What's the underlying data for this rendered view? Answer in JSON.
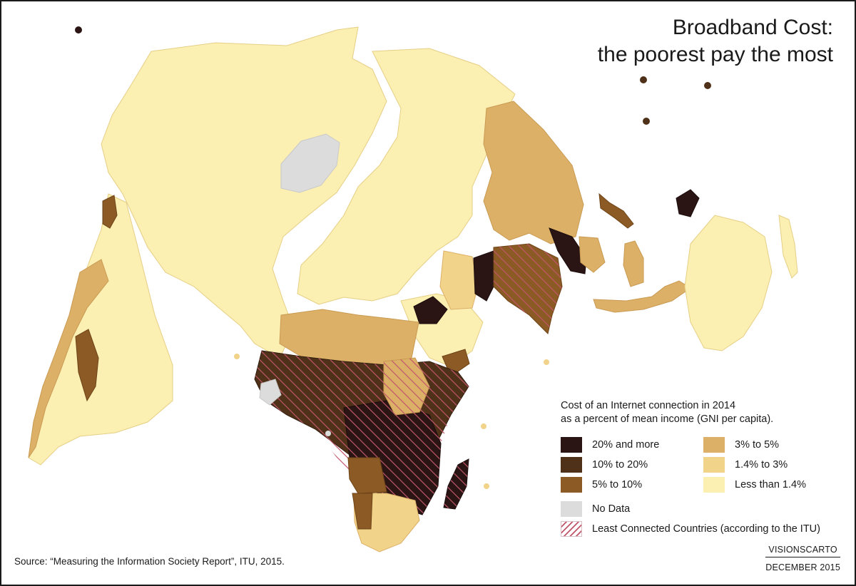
{
  "title": {
    "line1": "Broadband Cost:",
    "line2": "the poorest pay the most"
  },
  "legend": {
    "heading_line1": "Cost of an Internet connection in 2014",
    "heading_line2": "as a percent of mean income (GNI per capita).",
    "classes": [
      {
        "label": "20% and more",
        "color": "#2a1514"
      },
      {
        "label": "3% to 5%",
        "color": "#ddb068"
      },
      {
        "label": "10% to 20%",
        "color": "#4e3118"
      },
      {
        "label": "1.4% to 3%",
        "color": "#f1d38a"
      },
      {
        "label": "5% to 10%",
        "color": "#8c5a24"
      },
      {
        "label": "Less than 1.4%",
        "color": "#fbefb2"
      }
    ],
    "no_data": {
      "label": "No Data",
      "color": "#dcdcdc"
    },
    "least_connected": {
      "label": "Least Connected Countries (according to the ITU)",
      "hatch_color": "#c0566a"
    }
  },
  "source": "Source: “Measuring the Information Society Report”, ITU, 2015.",
  "credit": {
    "line1": "VISIONSCARTO",
    "line2": "DECEMBER 2015"
  }
}
